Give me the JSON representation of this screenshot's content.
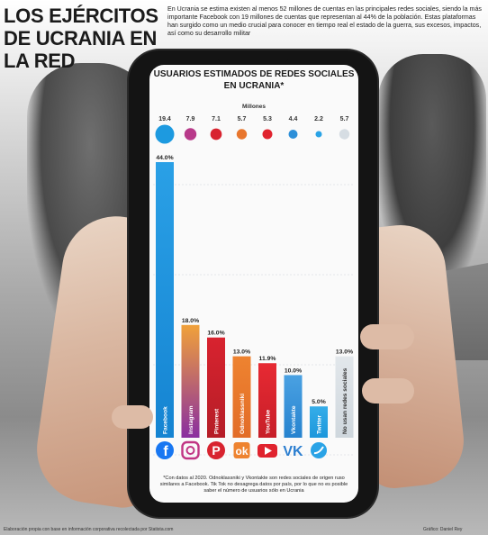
{
  "headline": "LOS EJÉRCITOS DE UCRANIA EN LA RED",
  "intro": "En Ucrania se estima existen al menos 52 millones de cuentas en las principales redes sociales, siendo la más importante Facebook con 19 millones de cuentas que representan al 44% de la población. Estas plataformas han surgido como un medio crucial para conocer en tiempo real el estado de la guerra, sus excesos, impactos, así como su desarrollo militar",
  "footnote": "*Con datos al 2020. Odnoklassniki y Vkontakte son redes sociales de origen ruso similares a Facebook. Tik Tok no desagrega datos por país, por lo que no es posible saber el número de usuarios sólo en Ucrania",
  "source": "Elaboración propia con base en información corporativa recolectada por Statista.com",
  "credit": "Gráfico: Daniel Rey",
  "icons": [
    "facebook-icon",
    "instagram-icon",
    "pinterest-icon",
    "odnoklassniki-icon",
    "youtube-icon",
    "vkontakte-icon",
    "twitter-icon"
  ],
  "chart_data": {
    "type": "bar",
    "title": "USUARIOS ESTIMADOS DE REDES SOCIALES EN UCRANIA*",
    "unit": "Millones",
    "categories": [
      "Facebook",
      "Instagram",
      "Pinterest",
      "Odnoklassniki",
      "YouTube",
      "Vkontakte",
      "Twitter",
      "No usan redes sociales"
    ],
    "series": [
      {
        "values": [
          44.0,
          18.0,
          16.0,
          13.0,
          11.9,
          10.0,
          5.0,
          13.0
        ]
      }
    ],
    "millions": [
      19.4,
      7.9,
      7.1,
      5.7,
      5.3,
      4.4,
      2.2,
      5.7
    ],
    "value_labels": [
      "44.0%",
      "18.0%",
      "16.0%",
      "13.0%",
      "11.9%",
      "10.0%",
      "5.0%",
      "13.0%"
    ],
    "million_labels": [
      "19.4",
      "7.9",
      "7.1",
      "5.7",
      "5.3",
      "4.4",
      "2.2",
      "5.7"
    ],
    "colors": [
      "#1d9ae0",
      "#b83a8a",
      "#d8232f",
      "#e8762d",
      "#e0232e",
      "#2d8fd8",
      "#2aa3e6",
      "#d6dde3"
    ],
    "bar_gradients": [
      [
        "#2aa0e6",
        "#1584d2"
      ],
      [
        "#f0a13a",
        "#8a2fa0"
      ],
      [
        "#d8232f",
        "#b51d27"
      ],
      [
        "#ee8330",
        "#e26c28"
      ],
      [
        "#e72a33",
        "#c71e28"
      ],
      [
        "#4aa1e2",
        "#2683cf"
      ],
      [
        "#35ade9",
        "#1d97db"
      ],
      [
        "#e2e7eb",
        "#cfd7dd"
      ]
    ],
    "ylim": [
      0,
      44
    ],
    "grid": true
  }
}
